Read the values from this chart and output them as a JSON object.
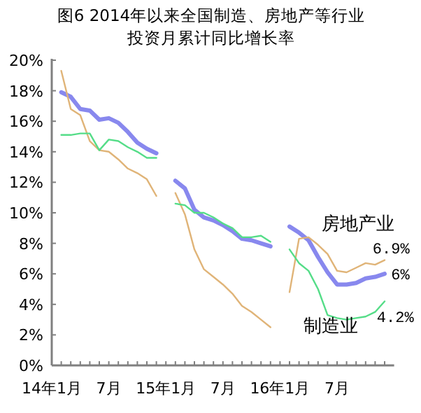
{
  "chart_data": {
    "type": "line",
    "title": "图6 2014年以来全国制造、房地产等行业投资月累计同比增长率",
    "x": [
      "2014-02",
      "2014-03",
      "2014-04",
      "2014-05",
      "2014-06",
      "2014-07",
      "2014-08",
      "2014-09",
      "2014-10",
      "2014-11",
      "2014-12",
      "2015-02",
      "2015-03",
      "2015-04",
      "2015-05",
      "2015-06",
      "2015-07",
      "2015-08",
      "2015-09",
      "2015-10",
      "2015-11",
      "2015-12",
      "2016-02",
      "2016-03",
      "2016-04",
      "2016-05",
      "2016-06",
      "2016-07",
      "2016-08",
      "2016-09",
      "2016-10",
      "2016-11",
      "2016-12"
    ],
    "series": [
      {
        "color": "#8888ee",
        "values": [
          17.9,
          17.6,
          16.8,
          16.7,
          16.1,
          16.2,
          15.9,
          15.3,
          14.6,
          14.2,
          13.9,
          12.1,
          11.6,
          10.2,
          9.7,
          9.5,
          9.2,
          8.8,
          8.3,
          8.2,
          8.0,
          7.8,
          9.1,
          8.7,
          8.2,
          7.1,
          6.1,
          5.3,
          5.3,
          5.4,
          5.7,
          5.8,
          6.0
        ],
        "value_labels": [
          null,
          null,
          null,
          null,
          null,
          null,
          null,
          null,
          null,
          null,
          null,
          null,
          null,
          null,
          null,
          null,
          null,
          null,
          null,
          null,
          null,
          null,
          null,
          null,
          null,
          null,
          null,
          null,
          null,
          null,
          null,
          null,
          "6%"
        ]
      },
      {
        "name": "房地产业",
        "color": "#e0b478",
        "values": [
          19.3,
          16.8,
          16.4,
          14.7,
          14.1,
          14.0,
          13.5,
          12.9,
          12.6,
          12.2,
          11.1,
          11.3,
          9.9,
          7.6,
          6.3,
          5.8,
          5.3,
          4.7,
          3.9,
          3.5,
          3.0,
          2.5,
          4.8,
          8.3,
          8.4,
          7.9,
          7.3,
          6.2,
          6.1,
          6.4,
          6.7,
          6.6,
          6.9
        ],
        "value_labels": [
          null,
          null,
          null,
          null,
          null,
          null,
          null,
          null,
          null,
          null,
          null,
          null,
          null,
          null,
          null,
          null,
          null,
          null,
          null,
          null,
          null,
          null,
          null,
          null,
          null,
          null,
          null,
          null,
          null,
          null,
          null,
          null,
          "6.9%"
        ]
      },
      {
        "name": "制造业",
        "color": "#55dd88",
        "values": [
          15.1,
          15.1,
          15.2,
          15.2,
          14.1,
          14.8,
          14.7,
          14.3,
          14.0,
          13.6,
          13.6,
          10.6,
          10.5,
          10.0,
          10.0,
          9.7,
          9.3,
          9.0,
          8.4,
          8.4,
          8.5,
          8.1,
          7.6,
          6.7,
          6.2,
          5.0,
          3.3,
          3.1,
          3.0,
          3.1,
          3.2,
          3.5,
          4.2
        ],
        "value_labels": [
          null,
          null,
          null,
          null,
          null,
          null,
          null,
          null,
          null,
          null,
          null,
          null,
          null,
          null,
          null,
          null,
          null,
          null,
          null,
          null,
          null,
          null,
          null,
          null,
          null,
          null,
          null,
          null,
          null,
          null,
          null,
          null,
          "4.2%"
        ]
      }
    ],
    "xlim": [
      "2014-01",
      "2017-01"
    ],
    "xticks": [
      {
        "value": "2014-01",
        "label": "14年1月"
      },
      {
        "value": "2014-02",
        "label": null
      },
      {
        "value": "2014-03",
        "label": null
      },
      {
        "value": "2014-04",
        "label": null
      },
      {
        "value": "2014-05",
        "label": null
      },
      {
        "value": "2014-06",
        "label": null
      },
      {
        "value": "2014-07",
        "label": "7月"
      },
      {
        "value": "2014-08",
        "label": null
      },
      {
        "value": "2014-09",
        "label": null
      },
      {
        "value": "2014-10",
        "label": null
      },
      {
        "value": "2014-11",
        "label": null
      },
      {
        "value": "2014-12",
        "label": null
      },
      {
        "value": "2015-01",
        "label": "15年1月"
      },
      {
        "value": "2015-02",
        "label": null
      },
      {
        "value": "2015-03",
        "label": null
      },
      {
        "value": "2015-04",
        "label": null
      },
      {
        "value": "2015-05",
        "label": null
      },
      {
        "value": "2015-06",
        "label": null
      },
      {
        "value": "2015-07",
        "label": "7月"
      },
      {
        "value": "2015-08",
        "label": null
      },
      {
        "value": "2015-09",
        "label": null
      },
      {
        "value": "2015-10",
        "label": null
      },
      {
        "value": "2015-11",
        "label": null
      },
      {
        "value": "2015-12",
        "label": null
      },
      {
        "value": "2016-01",
        "label": "16年1月"
      },
      {
        "value": "2016-02",
        "label": null
      },
      {
        "value": "2016-03",
        "label": null
      },
      {
        "value": "2016-04",
        "label": null
      },
      {
        "value": "2016-05",
        "label": null
      },
      {
        "value": "2016-06",
        "label": null
      },
      {
        "value": "2016-07",
        "label": "7月"
      },
      {
        "value": "2016-08",
        "label": null
      },
      {
        "value": "2016-09",
        "label": null
      },
      {
        "value": "2016-10",
        "label": null
      },
      {
        "value": "2016-11",
        "label": null
      },
      {
        "value": "2016-12",
        "label": null
      }
    ],
    "ylim": [
      0,
      20
    ],
    "yticks": [
      {
        "value": 0,
        "label": "0%"
      },
      {
        "value": 2,
        "label": "2%"
      },
      {
        "value": 4,
        "label": "4%"
      },
      {
        "value": 6,
        "label": "6%"
      },
      {
        "value": 8,
        "label": "8%"
      },
      {
        "value": 10,
        "label": "10%"
      },
      {
        "value": 12,
        "label": "12%"
      },
      {
        "value": 14,
        "label": "14%"
      },
      {
        "value": 16,
        "label": "16%"
      },
      {
        "value": 18,
        "label": "18%"
      },
      {
        "value": 20,
        "label": "20%"
      }
    ],
    "grid": false,
    "legend": false,
    "marker": "none",
    "line_style": "solid"
  }
}
